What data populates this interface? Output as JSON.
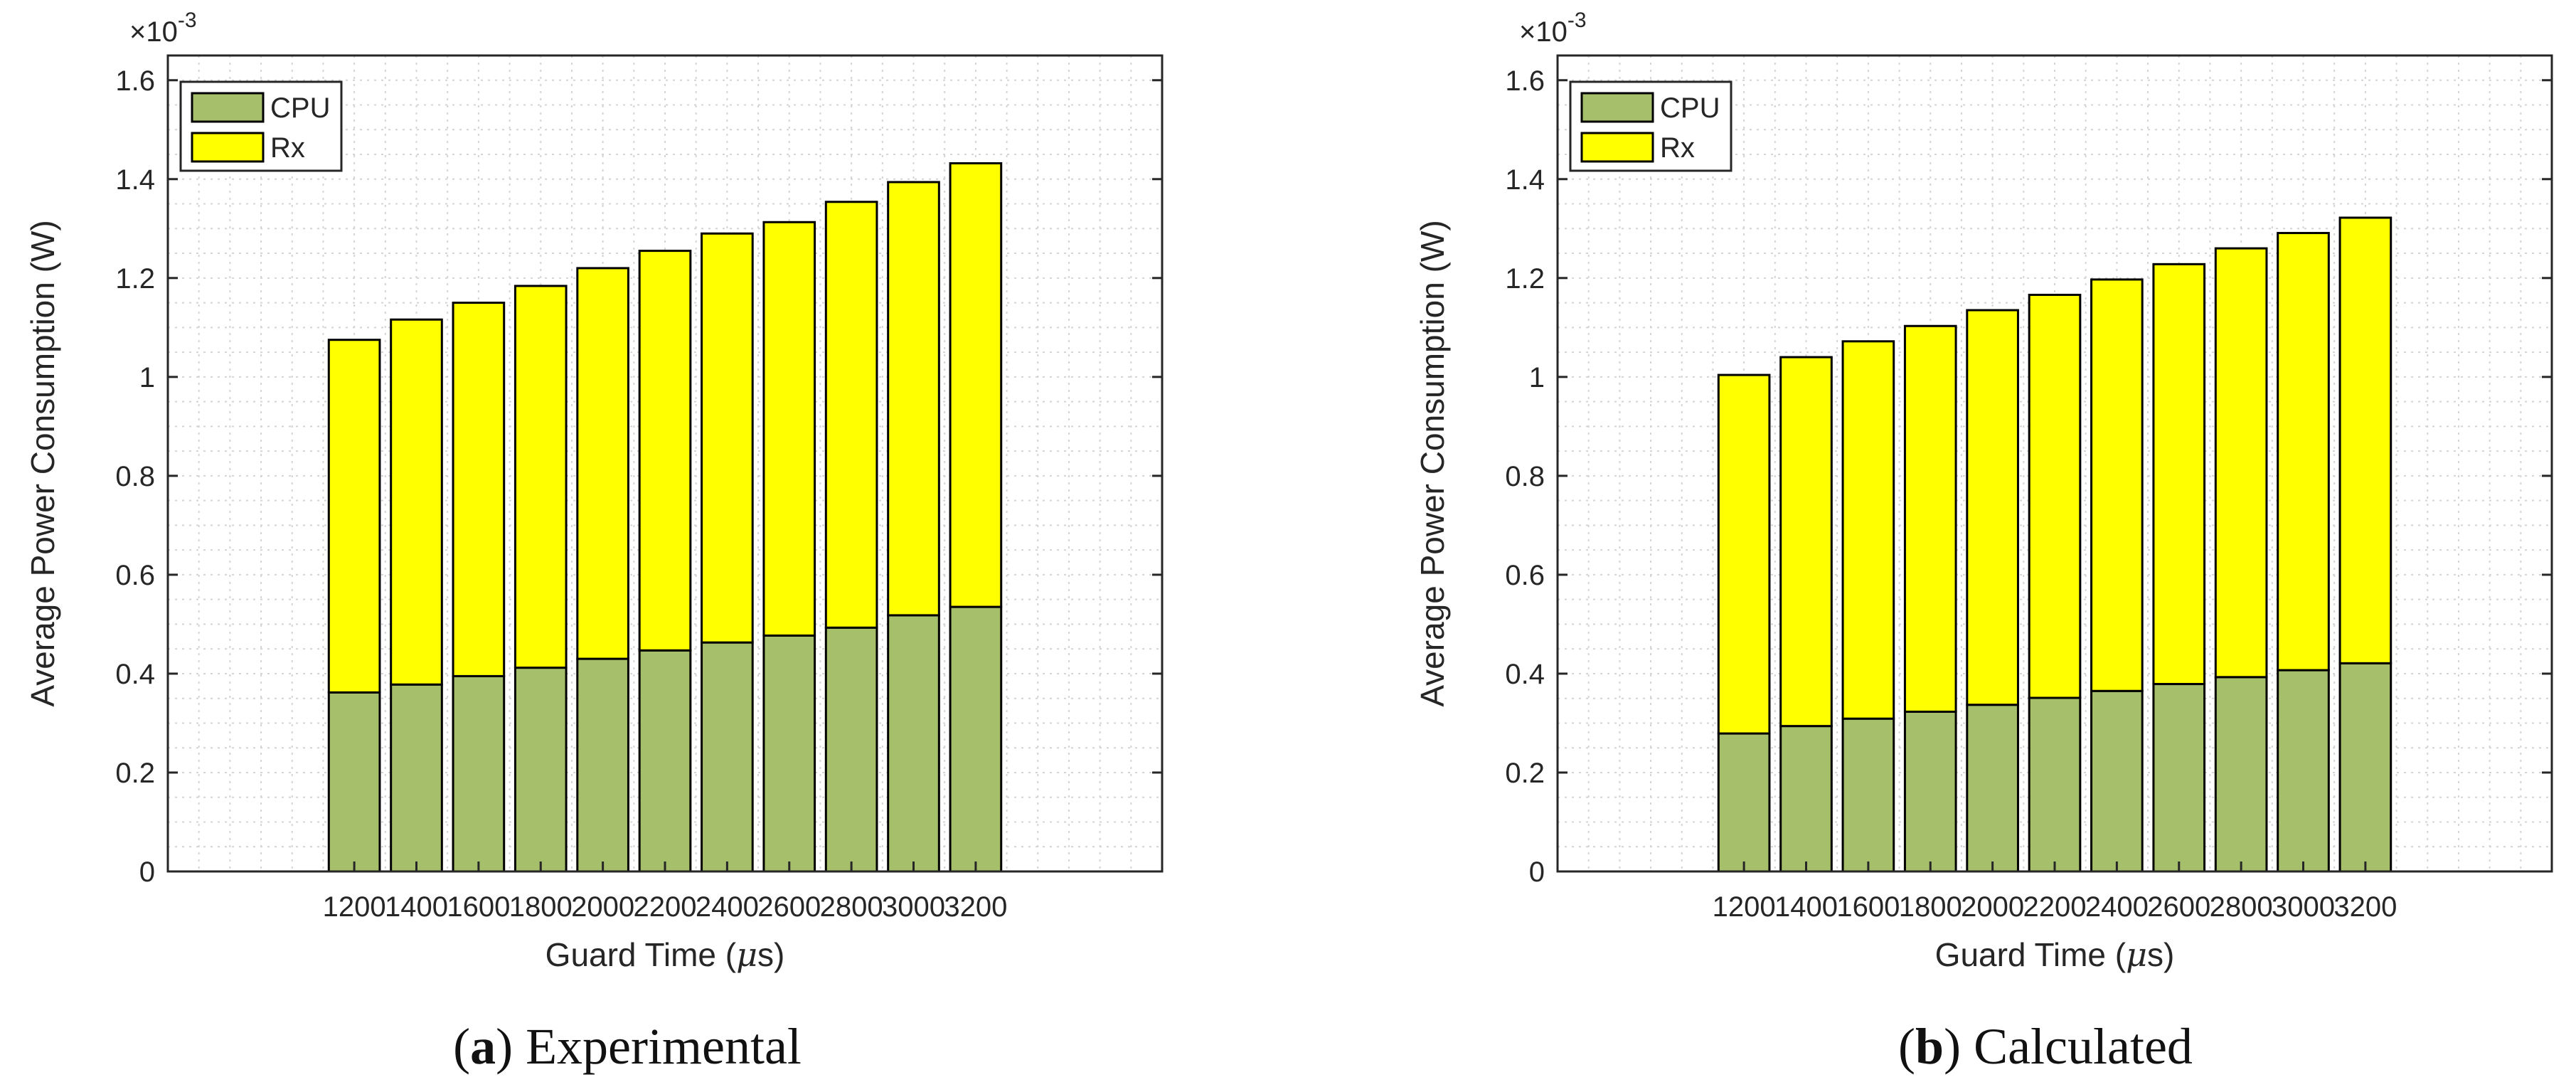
{
  "chart_data": [
    {
      "type": "bar",
      "stacked": true,
      "caption_letter": "a",
      "caption_text": "Experimental",
      "caption_open": "(",
      "caption_close": ")",
      "categories": [
        "1200",
        "1400",
        "1600",
        "1800",
        "2000",
        "2200",
        "2400",
        "2600",
        "2800",
        "3000",
        "3200"
      ],
      "series": [
        {
          "name": "CPU",
          "color": "#a6bf6b",
          "values": [
            0.362,
            0.378,
            0.395,
            0.412,
            0.43,
            0.447,
            0.463,
            0.477,
            0.493,
            0.518,
            0.535
          ]
        },
        {
          "name": "Rx",
          "color": "#ffff00",
          "values": [
            0.713,
            0.738,
            0.755,
            0.772,
            0.79,
            0.808,
            0.827,
            0.836,
            0.861,
            0.876,
            0.897
          ]
        }
      ],
      "yticks": [
        "0",
        "0.2",
        "0.4",
        "0.6",
        "0.8",
        "1",
        "1.2",
        "1.4",
        "1.6"
      ],
      "ylim": [
        0,
        1.65
      ],
      "xlim": [
        600,
        3800
      ],
      "y_scale_label": "×10",
      "y_scale_exponent": "-3",
      "xlabel_prefix": "Guard Time (",
      "xlabel_mu": "μ",
      "xlabel_suffix": "s)",
      "ylabel": "Average Power Consumption (W)",
      "legend_position": "top-left",
      "grid": true
    },
    {
      "type": "bar",
      "stacked": true,
      "caption_letter": "b",
      "caption_text": "Calculated",
      "caption_open": "(",
      "caption_close": ")",
      "categories": [
        "1200",
        "1400",
        "1600",
        "1800",
        "2000",
        "2200",
        "2400",
        "2600",
        "2800",
        "3000",
        "3200"
      ],
      "series": [
        {
          "name": "CPU",
          "color": "#a6bf6b",
          "values": [
            0.279,
            0.294,
            0.309,
            0.323,
            0.337,
            0.351,
            0.365,
            0.379,
            0.393,
            0.407,
            0.421
          ]
        },
        {
          "name": "Rx",
          "color": "#ffff00",
          "values": [
            0.725,
            0.746,
            0.763,
            0.78,
            0.798,
            0.815,
            0.832,
            0.849,
            0.867,
            0.884,
            0.901
          ]
        }
      ],
      "yticks": [
        "0",
        "0.2",
        "0.4",
        "0.6",
        "0.8",
        "1",
        "1.2",
        "1.4",
        "1.6"
      ],
      "ylim": [
        0,
        1.65
      ],
      "xlim": [
        600,
        3800
      ],
      "y_scale_label": "×10",
      "y_scale_exponent": "-3",
      "xlabel_prefix": "Guard Time (",
      "xlabel_mu": "μ",
      "xlabel_suffix": "s)",
      "ylabel": "Average Power Consumption (W)",
      "legend_position": "top-left",
      "grid": true
    }
  ]
}
